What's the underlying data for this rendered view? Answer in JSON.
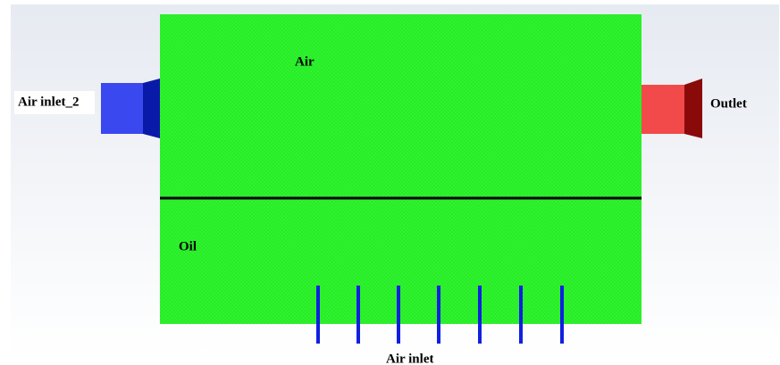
{
  "regions": {
    "air": "Air",
    "oil": "Oil"
  },
  "boundaries": {
    "air_inlet_2": "Air inlet_2",
    "outlet": "Outlet",
    "air_inlet": "Air inlet"
  }
}
